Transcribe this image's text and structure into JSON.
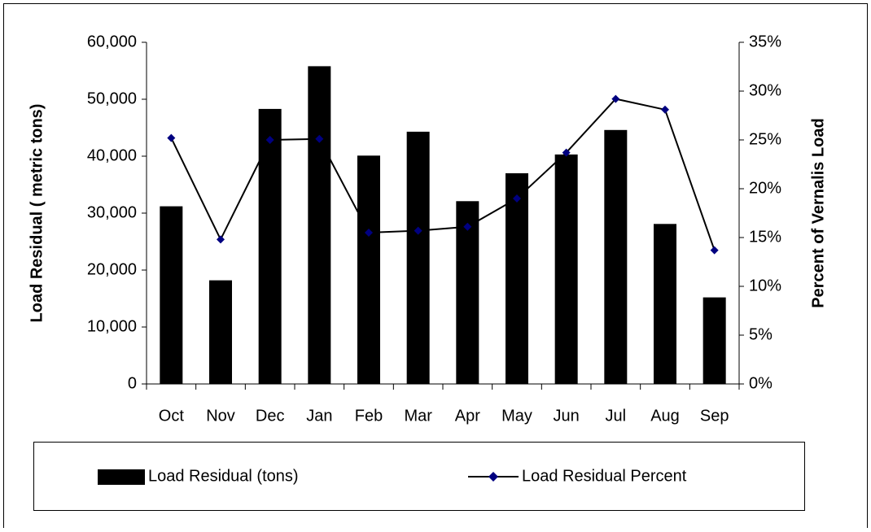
{
  "chart_data": {
    "type": "bar_line",
    "y_label": "Load Residual ( metric tons)",
    "y2_label": "Percent of Vernalis Load",
    "categories": [
      "Oct",
      "Nov",
      "Dec",
      "Jan",
      "Feb",
      "Mar",
      "Apr",
      "May",
      "Jun",
      "Jul",
      "Aug",
      "Sep"
    ],
    "ylim": [
      0,
      60000
    ],
    "yticks": [
      0,
      {
        "value": 10000,
        "label": "10,000"
      },
      {
        "value": 20000,
        "label": "20,000"
      },
      {
        "value": 30000,
        "label": "30,000"
      },
      {
        "value": 40000,
        "label": "40,000"
      },
      {
        "value": 50000,
        "label": "50,000"
      },
      {
        "value": 60000,
        "label": "60,000"
      }
    ],
    "y2lim": [
      0,
      35
    ],
    "y2ticks": [
      {
        "value": 0,
        "label": "0%"
      },
      {
        "value": 5,
        "label": "5%"
      },
      {
        "value": 10,
        "label": "10%"
      },
      {
        "value": 15,
        "label": "15%"
      },
      {
        "value": 20,
        "label": "20%"
      },
      {
        "value": 25,
        "label": "25%"
      },
      {
        "value": 30,
        "label": "30%"
      },
      {
        "value": 35,
        "label": "35%"
      }
    ],
    "series": [
      {
        "name": "Load Residual (tons)",
        "type": "bar",
        "color": "#000000",
        "axis": "y",
        "values": [
          31200,
          18200,
          48300,
          55800,
          40100,
          44300,
          32100,
          37000,
          40300,
          44600,
          28100,
          15200
        ]
      },
      {
        "name": "Load Residual Percent",
        "type": "line",
        "color": "#000000",
        "marker_color": "#000080",
        "axis": "y2",
        "values": [
          25.2,
          14.8,
          25.0,
          25.1,
          15.5,
          15.7,
          16.1,
          19.0,
          23.7,
          29.2,
          28.1,
          13.7
        ]
      }
    ],
    "grid": false
  }
}
